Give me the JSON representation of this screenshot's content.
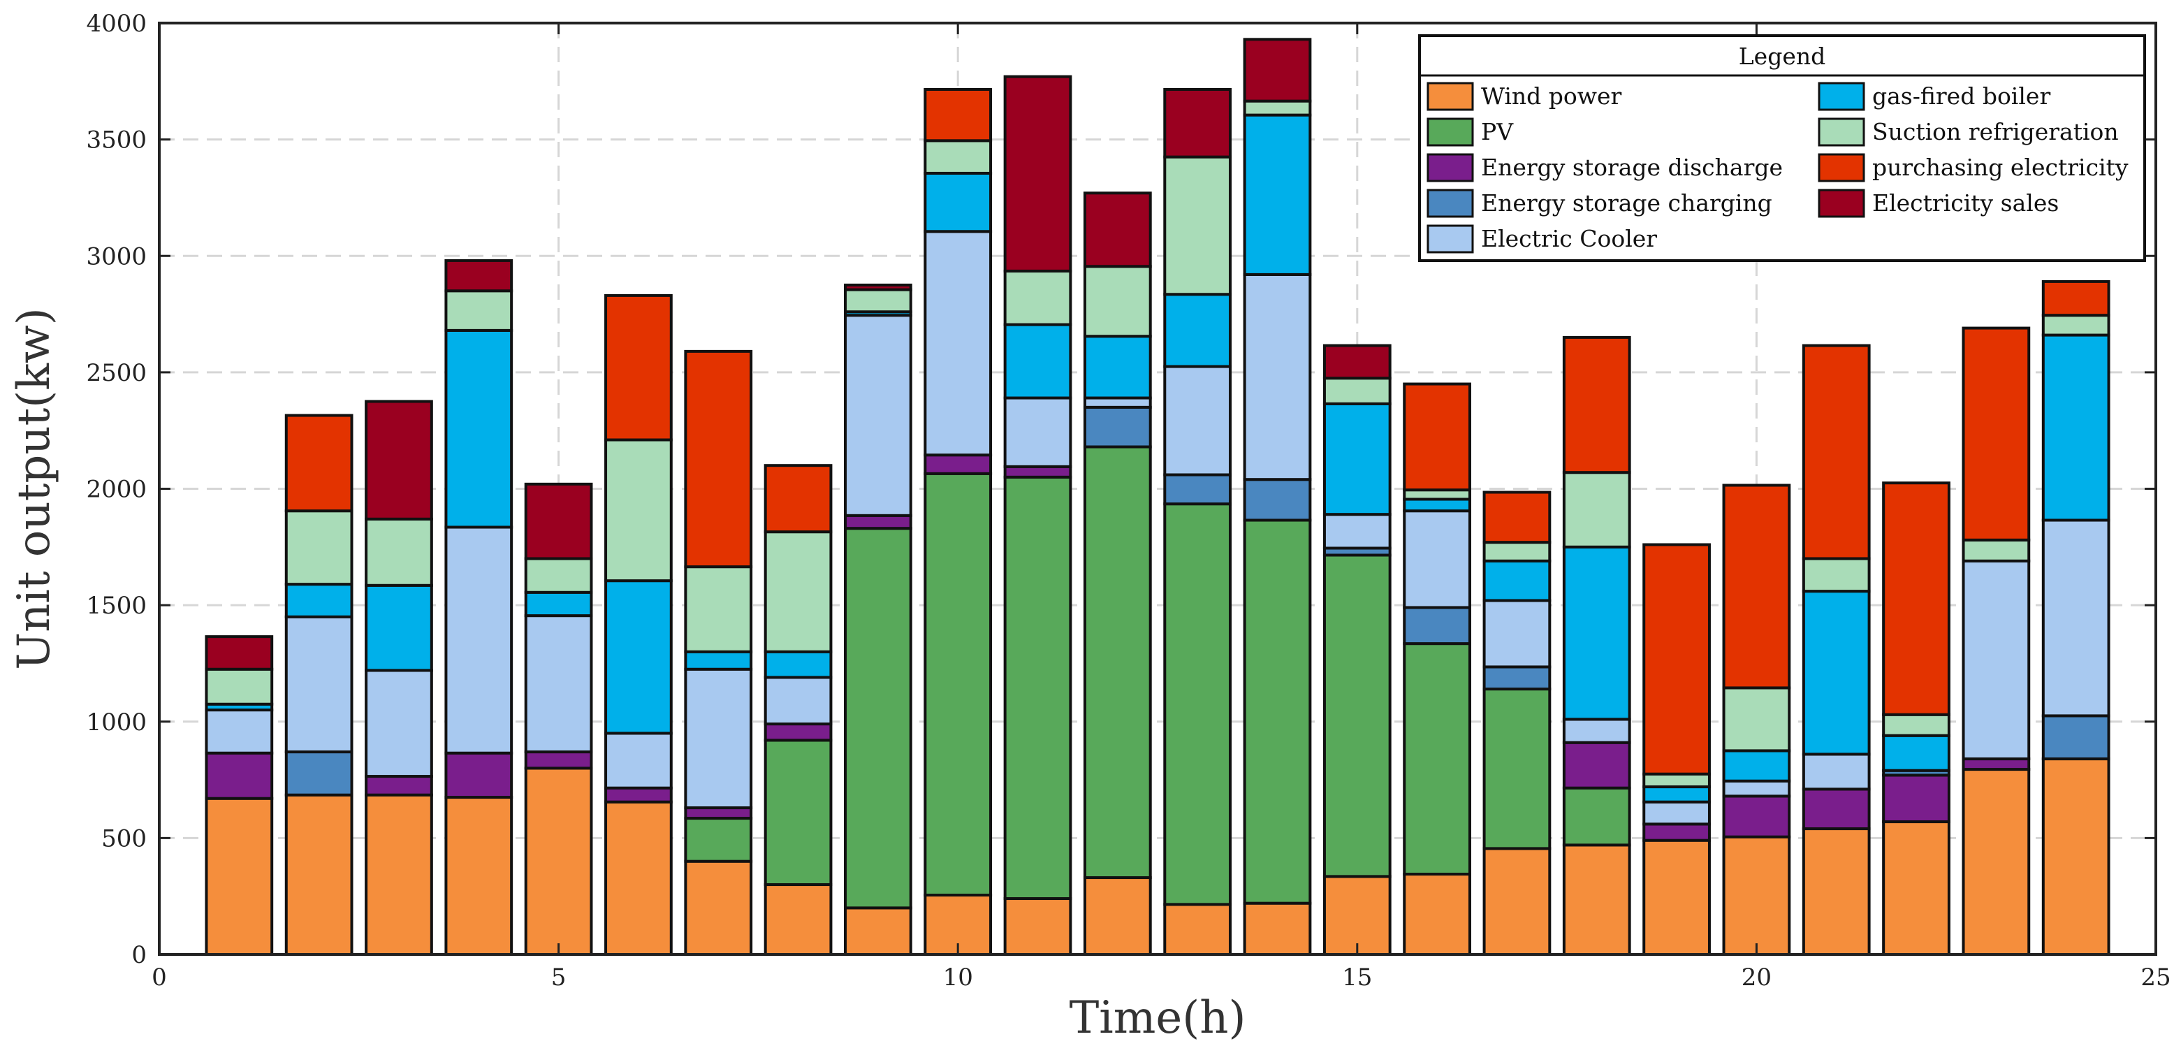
{
  "chart_data": {
    "type": "stacked-bar",
    "title": "",
    "xlabel": "Time(h)",
    "ylabel": "Unit output(kw)",
    "xlim": [
      0,
      25
    ],
    "ylim": [
      0,
      4000
    ],
    "xticks": [
      0,
      5,
      10,
      15,
      20,
      25
    ],
    "yticks": [
      0,
      500,
      1000,
      1500,
      2000,
      2500,
      3000,
      3500,
      4000
    ],
    "grid": true,
    "legend": {
      "title": "Legend",
      "placement": "top-right"
    },
    "categories": [
      1,
      2,
      3,
      4,
      5,
      6,
      7,
      8,
      9,
      10,
      11,
      12,
      13,
      14,
      15,
      16,
      17,
      18,
      19,
      20,
      21,
      22,
      23,
      24
    ],
    "series": [
      {
        "name": "Wind power",
        "color": "#F58E3C",
        "values": [
          670,
          685,
          685,
          675,
          800,
          655,
          400,
          300,
          200,
          255,
          240,
          330,
          215,
          220,
          335,
          345,
          455,
          470,
          490,
          505,
          540,
          570,
          795,
          840
        ]
      },
      {
        "name": "PV",
        "color": "#58A95A",
        "values": [
          0,
          0,
          0,
          0,
          0,
          0,
          185,
          620,
          1630,
          1810,
          1810,
          1850,
          1720,
          1645,
          1380,
          990,
          685,
          245,
          0,
          0,
          0,
          0,
          0,
          0
        ]
      },
      {
        "name": "Energy storage discharge",
        "color": "#7A1E8C",
        "values": [
          195,
          0,
          80,
          190,
          70,
          60,
          45,
          70,
          55,
          80,
          45,
          0,
          0,
          0,
          0,
          0,
          0,
          195,
          70,
          175,
          170,
          200,
          45,
          0
        ]
      },
      {
        "name": "Energy storage charging",
        "color": "#4A87C0",
        "values": [
          0,
          185,
          0,
          0,
          0,
          0,
          0,
          0,
          0,
          0,
          0,
          170,
          125,
          175,
          30,
          155,
          95,
          0,
          0,
          0,
          0,
          20,
          0,
          185
        ]
      },
      {
        "name": "Electric Cooler",
        "color": "#A8C9F0",
        "values": [
          185,
          580,
          455,
          970,
          585,
          235,
          595,
          200,
          860,
          960,
          295,
          40,
          465,
          880,
          145,
          415,
          285,
          100,
          95,
          65,
          150,
          0,
          850,
          840
        ]
      },
      {
        "name": "gas-fired boiler",
        "color": "#00B0EA",
        "values": [
          25,
          140,
          365,
          845,
          100,
          655,
          75,
          110,
          15,
          250,
          315,
          265,
          310,
          685,
          475,
          50,
          170,
          740,
          65,
          130,
          700,
          150,
          0,
          795
        ]
      },
      {
        "name": "Suction refrigeration",
        "color": "#A9DCB8",
        "values": [
          150,
          315,
          285,
          170,
          145,
          605,
          365,
          515,
          95,
          140,
          230,
          300,
          590,
          60,
          110,
          40,
          80,
          320,
          55,
          270,
          140,
          90,
          90,
          85
        ]
      },
      {
        "name": "purchasing electricity",
        "color": "#E33300",
        "values": [
          0,
          410,
          0,
          0,
          0,
          620,
          925,
          285,
          0,
          220,
          0,
          0,
          0,
          0,
          0,
          455,
          215,
          580,
          985,
          870,
          915,
          995,
          910,
          145
        ]
      },
      {
        "name": "Electricity sales",
        "color": "#9A0020",
        "values": [
          140,
          0,
          505,
          130,
          320,
          0,
          0,
          0,
          20,
          0,
          835,
          315,
          290,
          265,
          140,
          0,
          0,
          0,
          0,
          0,
          0,
          0,
          0,
          0
        ]
      }
    ]
  }
}
